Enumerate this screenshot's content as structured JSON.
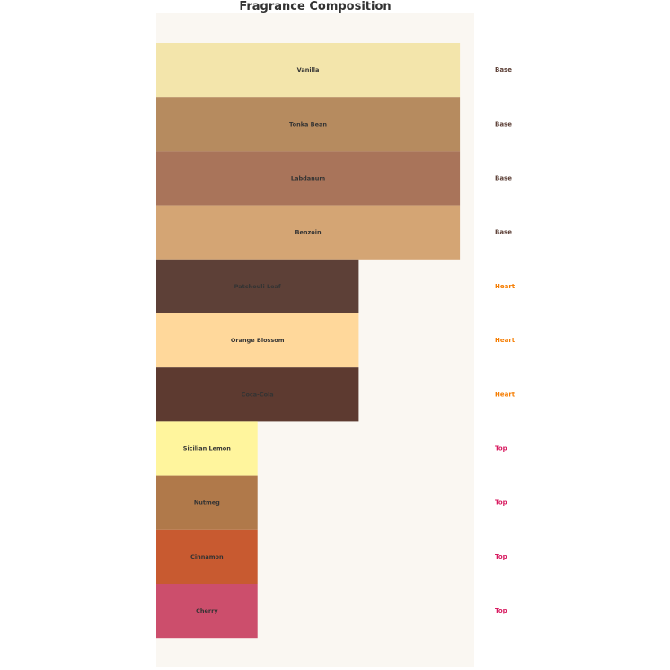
{
  "chart_data": {
    "type": "bar",
    "orientation": "horizontal",
    "title": "Fragrance Composition",
    "grid": false,
    "background": "#faf7f2",
    "categories": [
      "Vanilla",
      "Tonka Bean",
      "Labdanum",
      "Benzoin",
      "Patchouli Leaf",
      "Orange Blossom",
      "Coca-Cola",
      "Sicilian Lemon",
      "Nutmeg",
      "Cinnamon",
      "Cherry"
    ],
    "values": [
      3,
      3,
      3,
      3,
      2,
      2,
      2,
      1,
      1,
      1,
      1
    ],
    "groups": [
      "Base",
      "Base",
      "Base",
      "Base",
      "Heart",
      "Heart",
      "Heart",
      "Top",
      "Top",
      "Top",
      "Top"
    ],
    "colors": [
      "#f3e5ab",
      "#b68b5f",
      "#a9745a",
      "#d4a574",
      "#5d4037",
      "#ffd89b",
      "#5d3a30",
      "#fff59d",
      "#b0794a",
      "#c85a30",
      "#cc4e6c"
    ],
    "group_colors": {
      "Base": "#5d4037",
      "Heart": "#f57c00",
      "Top": "#d81b60"
    }
  }
}
